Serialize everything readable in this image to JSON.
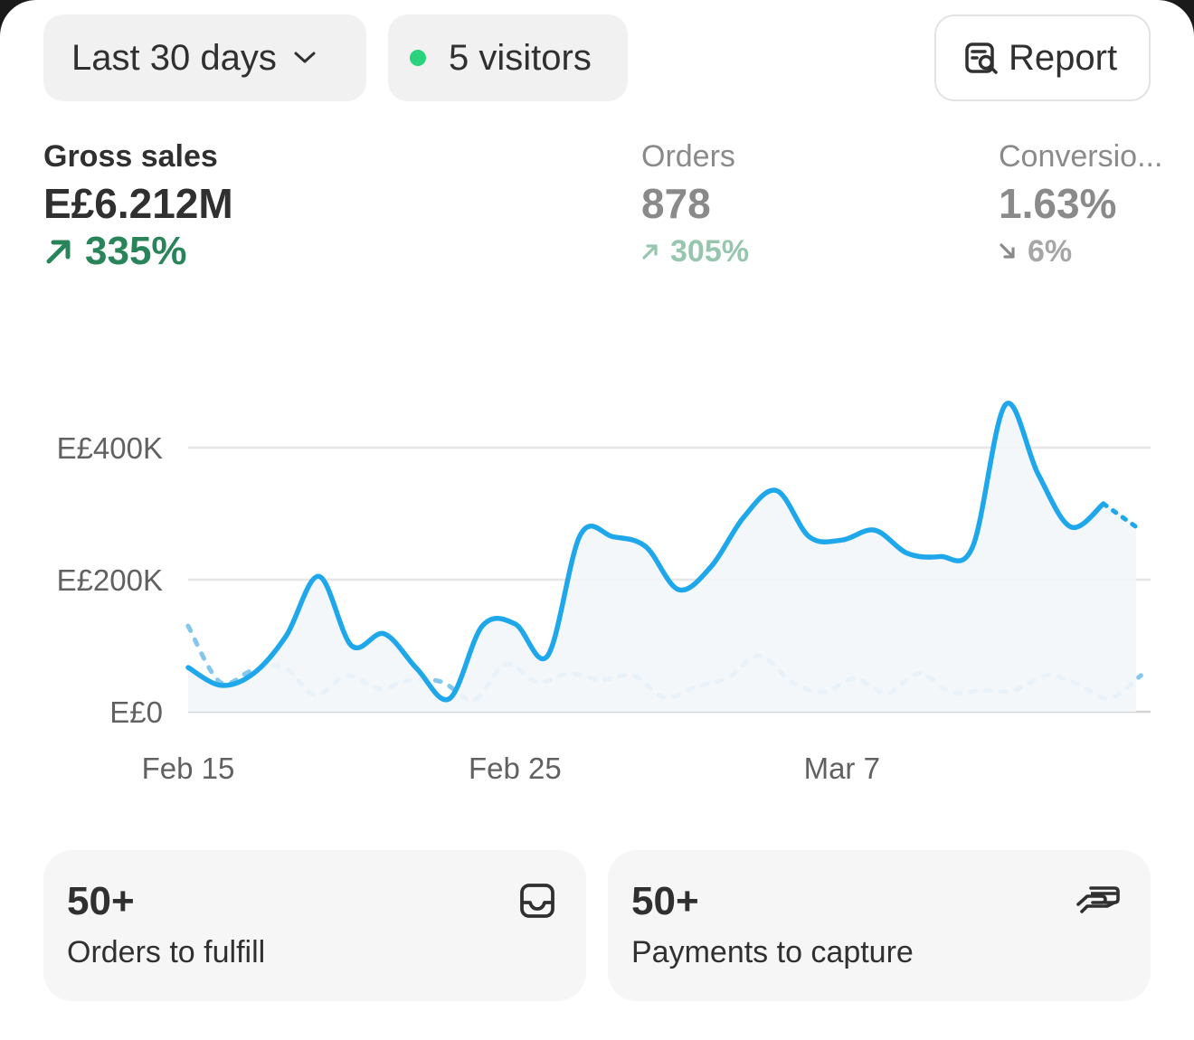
{
  "filters": {
    "date_range": "Last 30 days",
    "visitors": "5 visitors",
    "visitors_color": "#29d37b",
    "report_label": "Report",
    "report_icon": "report-search-icon"
  },
  "metrics": {
    "gross_sales": {
      "label": "Gross sales",
      "value": "E£6.212M",
      "change": "335%",
      "direction": "up",
      "color": "#29845a"
    },
    "orders": {
      "label": "Orders",
      "value": "878",
      "change": "305%",
      "direction": "up"
    },
    "conversion": {
      "label": "Conversio...",
      "value": "1.63%",
      "change": "6%",
      "direction": "down"
    }
  },
  "chart_data": {
    "type": "line",
    "x_tick_labels": [
      "Feb 15",
      "Feb 25",
      "Mar 7"
    ],
    "y_tick_labels": [
      "E£0",
      "E£200K",
      "E£400K"
    ],
    "ylim": [
      0,
      400000
    ],
    "grid": true,
    "colors": {
      "current": "#1ea7ea",
      "previous": "#83c8ec"
    },
    "series": [
      {
        "style": "solid",
        "values": [
          67000,
          40000,
          58000,
          115000,
          205000,
          100000,
          118000,
          65000,
          20000,
          130000,
          133000,
          85000,
          268000,
          265000,
          250000,
          185000,
          220000,
          295000,
          335000,
          265000,
          260000,
          275000,
          240000,
          235000,
          250000,
          465000,
          360000,
          280000,
          315000,
          280000
        ]
      },
      {
        "style": "dotted",
        "values": [
          130000,
          45000,
          62000,
          68000,
          25000,
          55000,
          35000,
          48000,
          45000,
          18000,
          72000,
          45000,
          58000,
          48000,
          55000,
          22000,
          38000,
          52000,
          85000,
          45000,
          30000,
          50000,
          28000,
          58000,
          30000,
          32000,
          32000,
          55000,
          42000,
          20000,
          55000
        ]
      }
    ]
  },
  "tiles": [
    {
      "count": "50+",
      "label": "Orders to fulfill",
      "icon": "inbox-icon"
    },
    {
      "count": "50+",
      "label": "Payments to capture",
      "icon": "cash-hand-icon"
    }
  ]
}
